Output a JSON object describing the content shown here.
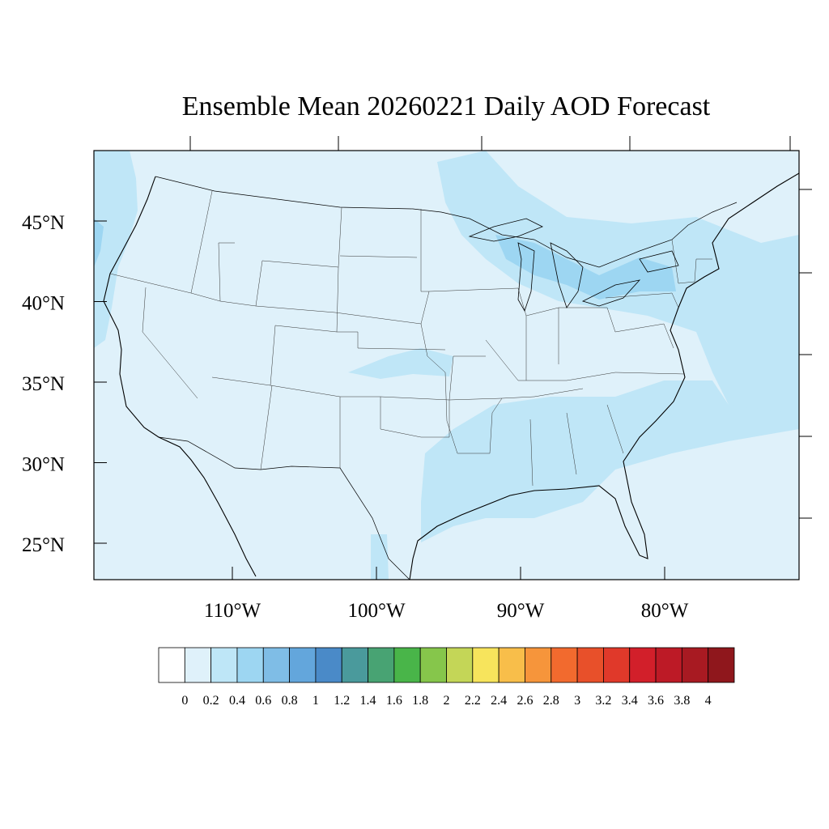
{
  "title": "Ensemble Mean 20260221 Daily AOD Forecast",
  "map": {
    "base_color": "#dff1fa",
    "latitude_labels": [
      "45°N",
      "40°N",
      "35°N",
      "30°N",
      "25°N"
    ],
    "longitude_labels": [
      "110°W",
      "100°W",
      "90°W",
      "80°W"
    ],
    "lat_label_values": [
      45,
      40,
      35,
      30,
      25
    ],
    "lon_label_values": [
      -110,
      -100,
      -90,
      -80
    ]
  },
  "colorbar": {
    "colors": [
      "#ffffff",
      "#dff1fa",
      "#bee6f7",
      "#9dd6f2",
      "#7fbde6",
      "#63a6dc",
      "#4a8ac8",
      "#4a9a9c",
      "#48a373",
      "#49b549",
      "#86c64b",
      "#c4d657",
      "#f7e45c",
      "#f8be4a",
      "#f6953b",
      "#f26a2e",
      "#e8502a",
      "#e0392a",
      "#d21f2a",
      "#bd1a26",
      "#a81a22",
      "#8f171c"
    ],
    "tick_labels": [
      "0",
      "0.2",
      "0.4",
      "0.6",
      "0.8",
      "1",
      "1.2",
      "1.4",
      "1.6",
      "1.8",
      "2",
      "2.2",
      "2.4",
      "2.6",
      "2.8",
      "3",
      "3.2",
      "3.4",
      "3.6",
      "3.8",
      "4"
    ]
  }
}
